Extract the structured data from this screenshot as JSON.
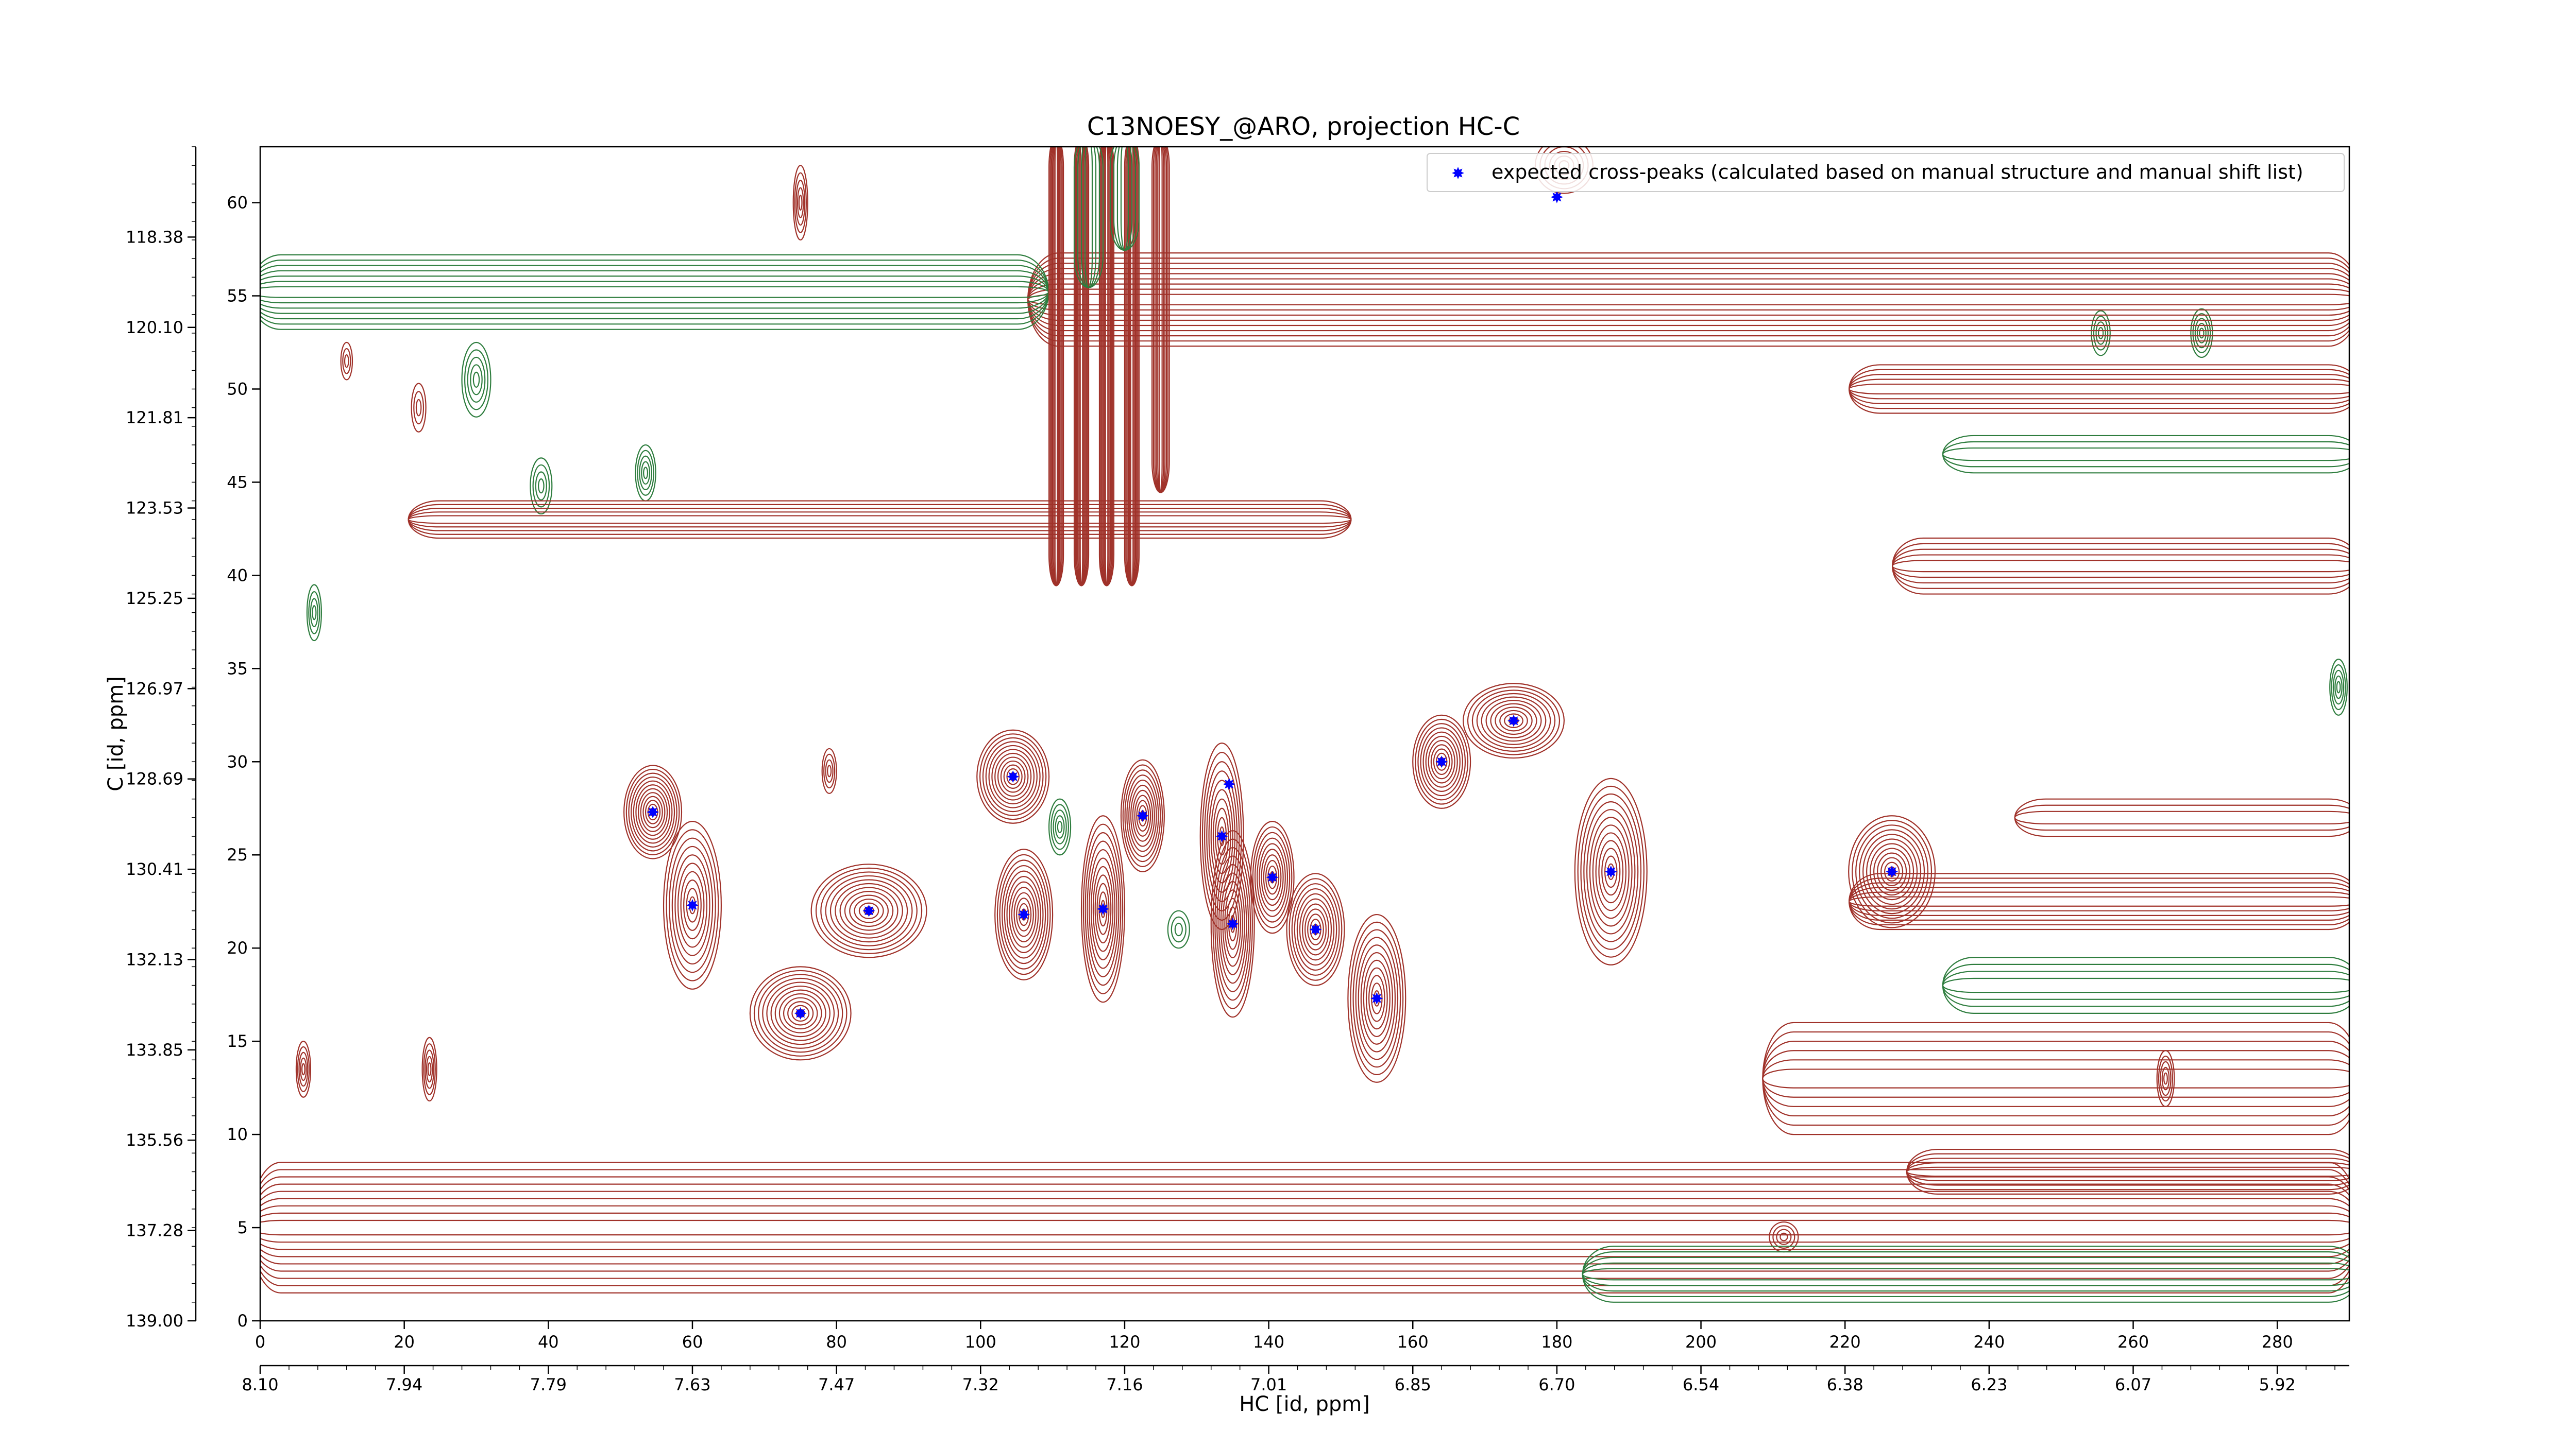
{
  "chart_data": {
    "type": "contour",
    "title": "C13NOESY_@ARO, projection HC-C",
    "xlabel": "HC [id, ppm]",
    "ylabel": "C [id, ppm]",
    "xlim": [
      0,
      290
    ],
    "ylim": [
      0,
      63
    ],
    "x_ticks": [
      0,
      20,
      40,
      60,
      80,
      100,
      120,
      140,
      160,
      180,
      200,
      220,
      240,
      260,
      280
    ],
    "y_ticks": [
      0,
      5,
      10,
      15,
      20,
      25,
      30,
      35,
      40,
      45,
      50,
      55,
      60
    ],
    "x_ppm_labels": [
      "8.10",
      "7.94",
      "7.79",
      "7.63",
      "7.47",
      "7.32",
      "7.16",
      "7.01",
      "6.85",
      "6.70",
      "6.54",
      "6.38",
      "6.23",
      "6.07",
      "5.92"
    ],
    "y_ppm_labels": [
      "139.00",
      "137.28",
      "135.56",
      "133.85",
      "132.13",
      "130.41",
      "128.69",
      "126.97",
      "125.25",
      "123.53",
      "121.81",
      "120.10",
      "118.38"
    ],
    "legend": {
      "label": "expected cross-peaks (calculated based on manual structure and manual shift list)",
      "position": "top-right",
      "marker_color": "#0000ff"
    },
    "contour_colors": {
      "positive": "#a0322a",
      "negative": "#2e7d3e"
    },
    "expected_peaks": [
      {
        "x": 54.5,
        "y": 27.3
      },
      {
        "x": 60,
        "y": 22.3
      },
      {
        "x": 75,
        "y": 16.5
      },
      {
        "x": 84.5,
        "y": 22
      },
      {
        "x": 104.5,
        "y": 29.2
      },
      {
        "x": 106,
        "y": 21.8
      },
      {
        "x": 117,
        "y": 22.1
      },
      {
        "x": 122.5,
        "y": 27.1
      },
      {
        "x": 133.5,
        "y": 26
      },
      {
        "x": 134.5,
        "y": 28.8
      },
      {
        "x": 135,
        "y": 21.3
      },
      {
        "x": 140.5,
        "y": 23.8
      },
      {
        "x": 146.5,
        "y": 21
      },
      {
        "x": 155,
        "y": 17.3
      },
      {
        "x": 164,
        "y": 30
      },
      {
        "x": 174,
        "y": 32.2
      },
      {
        "x": 180,
        "y": 60.3
      },
      {
        "x": 187.5,
        "y": 24.1
      },
      {
        "x": 226.5,
        "y": 24.1
      }
    ],
    "peak_regions": [
      {
        "x": 54.5,
        "y": 27.3,
        "sx": 4,
        "sy": 2.5,
        "sign": 1,
        "levels": 12
      },
      {
        "x": 60,
        "y": 22.3,
        "sx": 4,
        "sy": 4.5,
        "sign": 1,
        "levels": 10
      },
      {
        "x": 75,
        "y": 16.5,
        "sx": 7,
        "sy": 2.5,
        "sign": 1,
        "levels": 12
      },
      {
        "x": 84.5,
        "y": 22,
        "sx": 8,
        "sy": 2.5,
        "sign": 1,
        "levels": 12
      },
      {
        "x": 104.5,
        "y": 29.2,
        "sx": 5,
        "sy": 2.5,
        "sign": 1,
        "levels": 12
      },
      {
        "x": 106,
        "y": 21.8,
        "sx": 4,
        "sy": 3.5,
        "sign": 1,
        "levels": 12
      },
      {
        "x": 117,
        "y": 22.1,
        "sx": 3,
        "sy": 5,
        "sign": 1,
        "levels": 11
      },
      {
        "x": 122.5,
        "y": 27.1,
        "sx": 3,
        "sy": 3,
        "sign": 1,
        "levels": 11
      },
      {
        "x": 133.5,
        "y": 26,
        "sx": 3,
        "sy": 5,
        "sign": 1,
        "levels": 10
      },
      {
        "x": 135,
        "y": 21.3,
        "sx": 3,
        "sy": 5,
        "sign": 1,
        "levels": 11
      },
      {
        "x": 140.5,
        "y": 23.8,
        "sx": 3,
        "sy": 3,
        "sign": 1,
        "levels": 10
      },
      {
        "x": 146.5,
        "y": 21,
        "sx": 4,
        "sy": 3,
        "sign": 1,
        "levels": 11
      },
      {
        "x": 155,
        "y": 17.3,
        "sx": 4,
        "sy": 4.5,
        "sign": 1,
        "levels": 11
      },
      {
        "x": 164,
        "y": 30,
        "sx": 4,
        "sy": 2.5,
        "sign": 1,
        "levels": 11
      },
      {
        "x": 174,
        "y": 32.2,
        "sx": 7,
        "sy": 2,
        "sign": 1,
        "levels": 11
      },
      {
        "x": 187.5,
        "y": 24.1,
        "sx": 5,
        "sy": 5,
        "sign": 1,
        "levels": 12
      },
      {
        "x": 226.5,
        "y": 24.1,
        "sx": 6,
        "sy": 3,
        "sign": 1,
        "levels": 12
      },
      {
        "x": 75,
        "y": 60,
        "sx": 1,
        "sy": 2,
        "sign": 1,
        "levels": 5
      },
      {
        "x": 30,
        "y": 50.5,
        "sx": 2,
        "sy": 2,
        "sign": -1,
        "levels": 5
      },
      {
        "x": 53.5,
        "y": 45.5,
        "sx": 1.4,
        "sy": 1.5,
        "sign": -1,
        "levels": 5
      },
      {
        "x": 7.5,
        "y": 38,
        "sx": 1,
        "sy": 1.5,
        "sign": -1,
        "levels": 4
      },
      {
        "x": 6,
        "y": 13.5,
        "sx": 1,
        "sy": 1.5,
        "sign": 1,
        "levels": 5
      },
      {
        "x": 23.5,
        "y": 13.5,
        "sx": 1,
        "sy": 1.7,
        "sign": 1,
        "levels": 5
      },
      {
        "x": 211.5,
        "y": 4.5,
        "sx": 2,
        "sy": 0.8,
        "sign": 1,
        "levels": 4
      },
      {
        "x": 255.5,
        "y": 53,
        "sx": 1.3,
        "sy": 1.2,
        "sign": -1,
        "levels": 4
      },
      {
        "x": 269.5,
        "y": 53,
        "sx": 1.5,
        "sy": 1.3,
        "sign": -1,
        "levels": 5
      },
      {
        "x": 288.5,
        "y": 34,
        "sx": 1.2,
        "sy": 1.5,
        "sign": -1,
        "levels": 5
      },
      {
        "x": 264.5,
        "y": 13,
        "sx": 1.2,
        "sy": 1.5,
        "sign": 1,
        "levels": 5
      },
      {
        "x": 79,
        "y": 29.5,
        "sx": 1,
        "sy": 1.2,
        "sign": 1,
        "levels": 4
      },
      {
        "x": 111,
        "y": 26.5,
        "sx": 1.5,
        "sy": 1.5,
        "sign": -1,
        "levels": 5
      },
      {
        "x": 127.5,
        "y": 21,
        "sx": 1.5,
        "sy": 1,
        "sign": -1,
        "levels": 3
      },
      {
        "x": 39,
        "y": 44.8,
        "sx": 1.5,
        "sy": 1.5,
        "sign": -1,
        "levels": 4
      },
      {
        "x": 22,
        "y": 49,
        "sx": 1,
        "sy": 1.3,
        "sign": 1,
        "levels": 3
      },
      {
        "x": 12,
        "y": 51.5,
        "sx": 0.8,
        "sy": 1,
        "sign": 1,
        "levels": 3
      },
      {
        "x": 181,
        "y": 62,
        "sx": 4,
        "sy": 1.5,
        "sign": 1,
        "levels": 6
      }
    ],
    "streak_regions": [
      {
        "x0": 0,
        "x1": 290,
        "y": 5,
        "hy": 3.5,
        "sign": 1,
        "levels": 9
      },
      {
        "x0": 108,
        "x1": 290,
        "y": 54.8,
        "hy": 2.5,
        "sign": 1,
        "levels": 9
      },
      {
        "x0": 0,
        "x1": 108,
        "y": 55.2,
        "hy": 2,
        "sign": -1,
        "levels": 7
      },
      {
        "x0": 22,
        "x1": 150,
        "y": 43,
        "hy": 1,
        "sign": 1,
        "levels": 5
      },
      {
        "x0": 222,
        "x1": 290,
        "y": 50,
        "hy": 1.3,
        "sign": 1,
        "levels": 5
      },
      {
        "x0": 228,
        "x1": 290,
        "y": 40.5,
        "hy": 1.5,
        "sign": 1,
        "levels": 5
      },
      {
        "x0": 222,
        "x1": 290,
        "y": 22.5,
        "hy": 1.5,
        "sign": 1,
        "levels": 6
      },
      {
        "x0": 210,
        "x1": 290,
        "y": 13,
        "hy": 3,
        "sign": 1,
        "levels": 6
      },
      {
        "x0": 230,
        "x1": 290,
        "y": 8,
        "hy": 1.2,
        "sign": 1,
        "levels": 5
      },
      {
        "x0": 185,
        "x1": 290,
        "y": 2.5,
        "hy": 1.5,
        "sign": -1,
        "levels": 5
      },
      {
        "x0": 235,
        "x1": 290,
        "y": 18,
        "hy": 1.5,
        "sign": -1,
        "levels": 4
      },
      {
        "x0": 235,
        "x1": 290,
        "y": 46.5,
        "hy": 1,
        "sign": -1,
        "levels": 3
      },
      {
        "x0": 245,
        "x1": 290,
        "y": 27,
        "hy": 1,
        "sign": 1,
        "levels": 3
      }
    ],
    "vertical_regions": [
      {
        "x": 110.5,
        "y0": 40,
        "y1": 63,
        "hx": 1,
        "sign": 1,
        "levels": 6
      },
      {
        "x": 114,
        "y0": 40,
        "y1": 63,
        "hx": 1,
        "sign": 1,
        "levels": 6
      },
      {
        "x": 117.5,
        "y0": 40,
        "y1": 63,
        "hx": 1,
        "sign": 1,
        "levels": 6
      },
      {
        "x": 121,
        "y0": 40,
        "y1": 63,
        "hx": 1,
        "sign": 1,
        "levels": 6
      },
      {
        "x": 125,
        "y0": 45,
        "y1": 63,
        "hx": 1.2,
        "sign": 1,
        "levels": 6
      },
      {
        "x": 115,
        "y0": 56,
        "y1": 63,
        "hx": 2,
        "sign": -1,
        "levels": 4
      },
      {
        "x": 120,
        "y0": 58,
        "y1": 63,
        "hx": 2,
        "sign": -1,
        "levels": 4
      }
    ]
  }
}
